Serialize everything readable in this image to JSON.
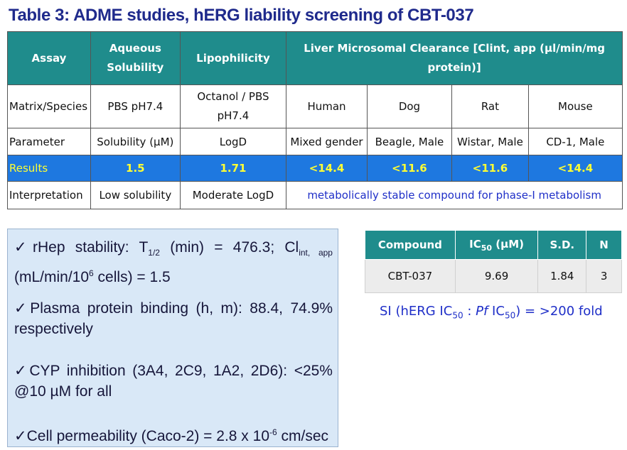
{
  "title": "Table 3: ADME studies, hERG liability screening of CBT-037",
  "adme_table": {
    "headers": {
      "assay": "Assay",
      "aqueous_solubility": "Aqueous Solubility",
      "lipophilicity": "Lipophilicity",
      "clearance": "Liver Microsomal Clearance [Clint, app (µl/min/mg protein)]"
    },
    "rows": {
      "matrix": {
        "label": "Matrix/Species",
        "cells": [
          "PBS pH7.4",
          "Octanol / PBS pH7.4",
          "Human",
          "Dog",
          "Rat",
          "Mouse"
        ]
      },
      "parameter": {
        "label": "Parameter",
        "cells": [
          "Solubility (µM)",
          "LogD",
          "Mixed gender",
          "Beagle, Male",
          "Wistar, Male",
          "CD-1, Male"
        ]
      },
      "results": {
        "label": "Results",
        "cells": [
          "1.5",
          "1.71",
          "<14.4",
          "<11.6",
          "<11.6",
          "<14.4"
        ]
      },
      "interpretation": {
        "label": "Interpretation",
        "cells": [
          "Low solubility",
          "Moderate LogD",
          "metabolically stable compound for phase-I metabolism"
        ]
      }
    }
  },
  "bullets": {
    "check": "✓",
    "rhep": {
      "a": "rHep stability: T",
      "a_sub": "1/2",
      "b": " (min) = 476.3; Cl",
      "b_sub": "int, app",
      "c": " (mL/min/10",
      "c_sup": "6",
      "d": " cells) = 1.5"
    },
    "ppb": "Plasma protein binding (h, m): 88.4, 74.9% respectively",
    "cyp": "CYP inhibition (3A4, 2C9, 1A2, 2D6): <25% @10 µM for all",
    "caco": {
      "a": "Cell permeability (Caco-2) = 2.8 x 10",
      "a_sup": "-6",
      "b": " cm/sec"
    }
  },
  "herg_table": {
    "headers": {
      "compound": "Compound",
      "ic50_pre": "IC",
      "ic50_sub": "50",
      "ic50_post": " (µM)",
      "sd": "S.D.",
      "n": "N"
    },
    "row": {
      "compound": "CBT-037",
      "ic50": "9.69",
      "sd": "1.84",
      "n": "3"
    }
  },
  "si": {
    "a": "SI (hERG IC",
    "a_sub": "50",
    "b": " : ",
    "pf": "Pf",
    "c": " IC",
    "c_sub": "50",
    "d": ") = >200 fold"
  },
  "colors": {
    "title": "#1f2a8c",
    "header_teal": "#1f8c8c",
    "results_blue": "#1e78e0",
    "results_text": "#ffff33",
    "note_blue": "#1f2fc8",
    "panel_bg": "#d9e8f7"
  }
}
